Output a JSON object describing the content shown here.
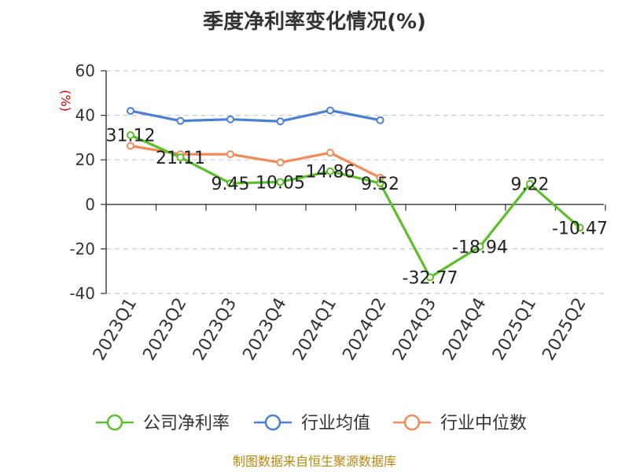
{
  "chart_data": {
    "type": "line",
    "title": "季度净利率变化情况(%)",
    "ylabel": "(%)",
    "xlabel": "",
    "ylim": [
      -40,
      60
    ],
    "yticks": [
      60,
      40,
      20,
      0,
      -20,
      -40
    ],
    "grid": true,
    "legend_position": "bottom",
    "categories": [
      "2023Q1",
      "2023Q2",
      "2023Q3",
      "2023Q4",
      "2024Q1",
      "2024Q2",
      "2024Q3",
      "2024Q4",
      "2025Q1",
      "2025Q2"
    ],
    "series": [
      {
        "name": "公司净利率",
        "color": "#5bbf2a",
        "values": [
          31.12,
          21.11,
          9.45,
          10.05,
          14.86,
          9.52,
          -32.77,
          -18.94,
          9.22,
          -10.47
        ],
        "labels": [
          "31.12",
          "21.11",
          "9.45",
          "10.05",
          "14.86",
          "9.52",
          "-32.77",
          "-18.94",
          "9.22",
          "-10.47"
        ]
      },
      {
        "name": "行业均值",
        "color": "#4a7fd4",
        "values": [
          42.0,
          37.5,
          38.2,
          37.3,
          42.2,
          37.8,
          null,
          null,
          null,
          null
        ]
      },
      {
        "name": "行业中位数",
        "color": "#f28b5a",
        "values": [
          26.3,
          22.5,
          22.5,
          18.8,
          23.2,
          12.0,
          null,
          null,
          null,
          null
        ]
      }
    ]
  },
  "source_text": "制图数据来自恒生聚源数据库"
}
